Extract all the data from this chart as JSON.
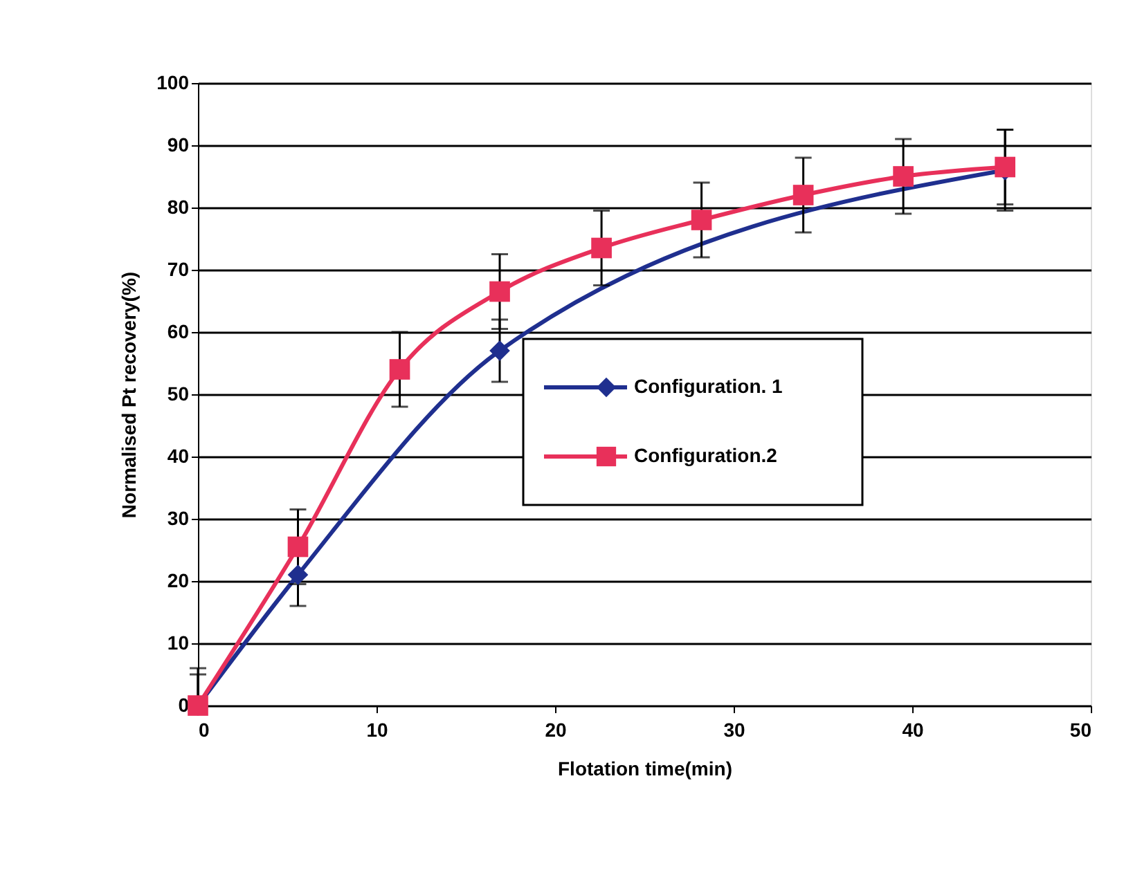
{
  "chart_data": {
    "type": "line",
    "xlabel": "Flotation time(min)",
    "ylabel": "Normalised Pt recovery(%)",
    "xlim": [
      0,
      50
    ],
    "xticks": [
      0,
      10,
      20,
      30,
      40,
      50
    ],
    "ylim": [
      0,
      100
    ],
    "yticks": [
      0,
      10,
      20,
      30,
      40,
      50,
      60,
      70,
      80,
      90,
      100
    ],
    "grid": "y",
    "legend": "right",
    "line_style": "solid",
    "series": [
      {
        "name": "Configuration. 1",
        "color": "#1f2f8f",
        "marker": "diamond",
        "x": [
          0,
          5.6,
          16.9,
          45.2
        ],
        "values": [
          0,
          21,
          57,
          86
        ],
        "errors": [
          [
            0,
            6
          ],
          5,
          5,
          6.5
        ]
      },
      {
        "name": "Configuration.2",
        "color": "#e8305a",
        "marker": "square",
        "x": [
          0,
          5.6,
          11.3,
          16.9,
          22.6,
          28.2,
          33.9,
          39.5,
          45.2
        ],
        "values": [
          0,
          25.5,
          54,
          66.5,
          73.5,
          78,
          82,
          85,
          86.5
        ],
        "errors": [
          [
            0,
            5
          ],
          6,
          6,
          6,
          6,
          6,
          6,
          6,
          6
        ]
      }
    ]
  }
}
